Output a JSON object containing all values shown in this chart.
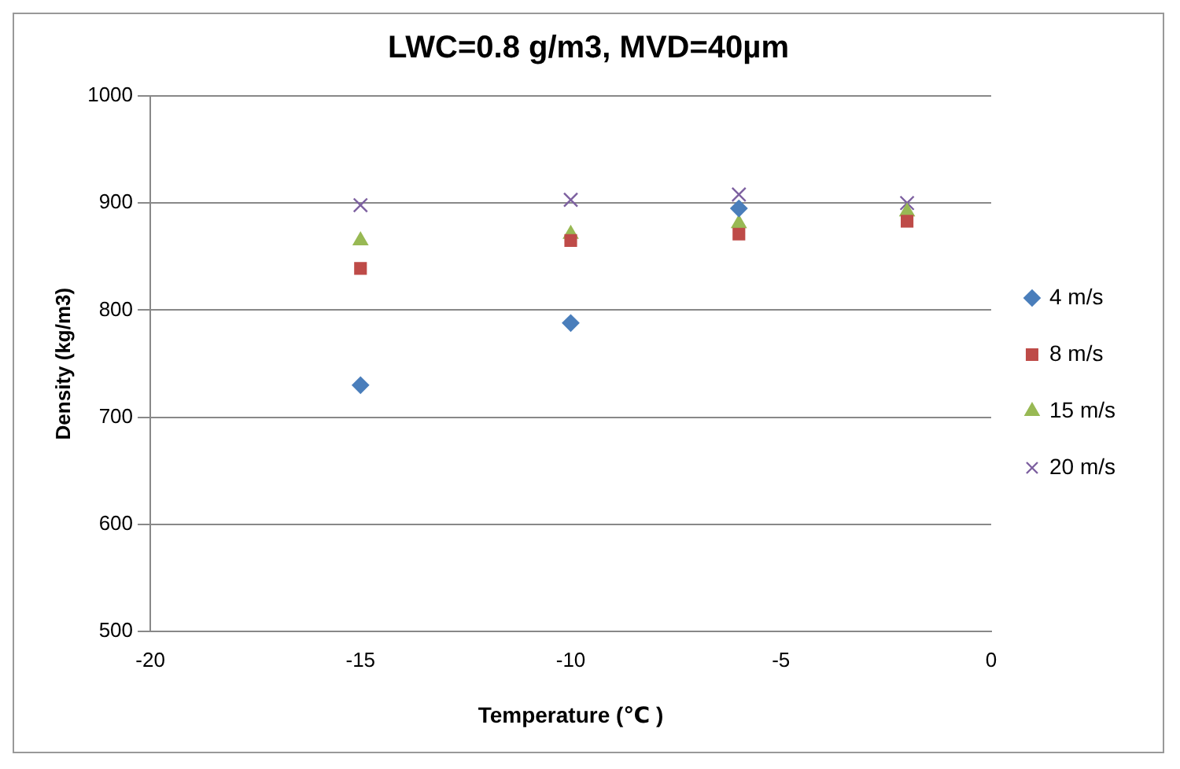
{
  "chart_data": {
    "type": "scatter",
    "title": "LWC=0.8 g/m3, MVD=40µm",
    "xlabel": "Temperature (℃ )",
    "ylabel": "Density (kg/m3)",
    "x": [
      -15,
      -10,
      -6,
      -2
    ],
    "series": [
      {
        "name": "4 m/s",
        "color": "#4a7ebb",
        "marker": "diamond",
        "values": [
          730,
          788,
          895,
          null
        ]
      },
      {
        "name": "8 m/s",
        "color": "#be4b48",
        "marker": "square",
        "values": [
          839,
          865,
          871,
          883
        ]
      },
      {
        "name": "15 m/s",
        "color": "#98b954",
        "marker": "triangle",
        "values": [
          865,
          871,
          881,
          892
        ]
      },
      {
        "name": "20 m/s",
        "color": "#7d60a0",
        "marker": "cross",
        "values": [
          898,
          903,
          908,
          900
        ]
      }
    ],
    "xlim": [
      -20,
      0
    ],
    "xticks": [
      -20,
      -15,
      -10,
      -5,
      0
    ],
    "ylim": [
      500,
      1000
    ],
    "yticks": [
      500,
      600,
      700,
      800,
      900,
      1000
    ],
    "grid": "y",
    "legend": "right"
  }
}
